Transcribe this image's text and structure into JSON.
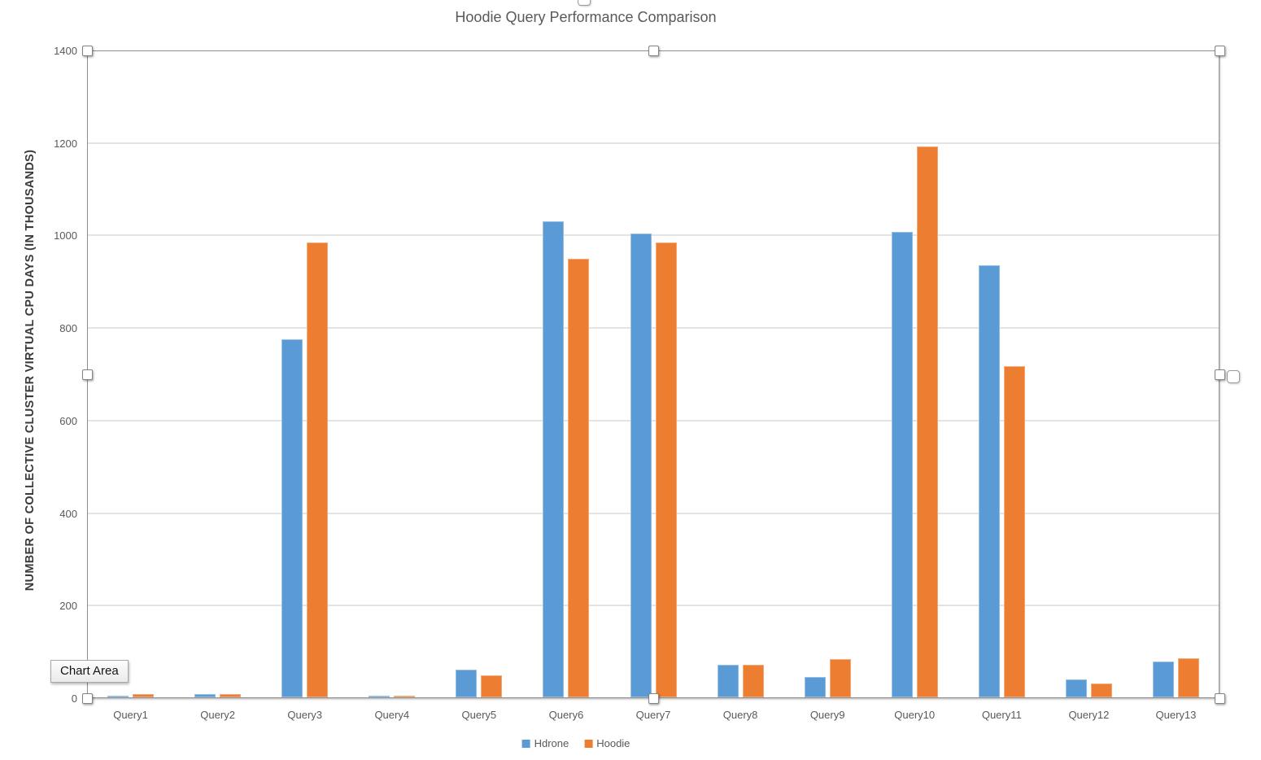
{
  "chart_data": {
    "type": "bar",
    "title": "Hoodie Query Performance Comparison",
    "xlabel": "",
    "ylabel": "NUMBER OF COLLECTIVE CLUSTER VIRTUAL CPU DAYS (IN THOUSANDS)",
    "categories": [
      "Query1",
      "Query2",
      "Query3",
      "Query4",
      "Query5",
      "Query6",
      "Query7",
      "Query8",
      "Query9",
      "Query10",
      "Query11",
      "Query12",
      "Query13"
    ],
    "series": [
      {
        "name": "Hdrone",
        "color": "#5B9BD5",
        "values": [
          5,
          9,
          775,
          5,
          62,
          1030,
          1005,
          72,
          46,
          1008,
          935,
          40,
          80
        ]
      },
      {
        "name": "Hoodie",
        "color": "#ED7D31",
        "values": [
          9,
          9,
          985,
          5,
          50,
          950,
          985,
          72,
          84,
          1192,
          718,
          32,
          87
        ]
      }
    ],
    "ylim": [
      0,
      1400
    ],
    "yticks": [
      0,
      200,
      400,
      600,
      800,
      1000,
      1200,
      1400
    ],
    "grid": true,
    "legend_position": "bottom-center"
  },
  "overlay": {
    "tooltip_label": "Chart Area",
    "selection_handles": [
      "top-left",
      "top-center",
      "top-right",
      "middle-left",
      "middle-right",
      "bottom-left",
      "bottom-center",
      "bottom-right"
    ],
    "outer_handles": [
      "top-center",
      "right-middle"
    ]
  },
  "colors": {
    "title_text": "#595959",
    "axis_text": "#595959",
    "axis_line": "#8f8f8f",
    "gridline": "#e3e3e3",
    "hdrone": "#5B9BD5",
    "hoodie": "#ED7D31"
  }
}
